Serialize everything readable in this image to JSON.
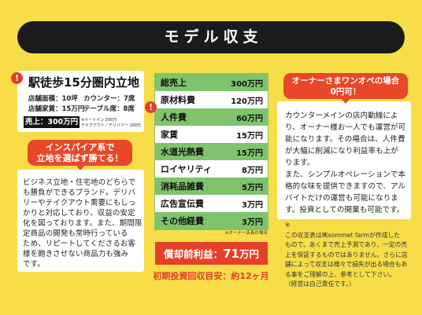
{
  "title": "モデル収支",
  "colors": {
    "background": "#F7DE48",
    "title_bar": "#1B1B1B",
    "accent_red": "#E9472A",
    "table_green": "#7FC46C"
  },
  "location_card": {
    "badge": "!",
    "heading": "駅徒歩15分圏内立地",
    "store_area": "店舗面積：10坪",
    "counter_seats": "カウンター：7席",
    "store_rent": "店舗家賃：15万円",
    "table_seats": "テーブル席：8席",
    "sales": "売上：300万円",
    "sales_breakdown": [
      "※イートイン 200万",
      "テイクアウト／デリバリー 100万"
    ]
  },
  "left_callout": [
    "インスパイア系で",
    "立地を選ばず勝てる！"
  ],
  "left_body": [
    "ビジネス立地・住宅地のどちらで",
    "も勝負ができるブランド。デリバ",
    "リーやテイクアウト需要にもしっ",
    "かりと対応しており、収益の安定",
    "化を図っております。また、期間限",
    "定商品の開発も常時行っている",
    "ため、リピートしてくださるお客",
    "様を飽きさせない商品力も強み",
    "です。"
  ],
  "pl_table": {
    "badge": "!",
    "rows": [
      {
        "label": "総売上",
        "value": "300万円"
      },
      {
        "label": "原材料費",
        "value": "120万円"
      },
      {
        "label": "人件費",
        "value": "60万円"
      },
      {
        "label": "家賃",
        "value": "15万円"
      },
      {
        "label": "水道光熱費",
        "value": "15万円"
      },
      {
        "label": "ロイヤリティ",
        "value": "8万円"
      },
      {
        "label": "消耗品雑費",
        "value": "5万円"
      },
      {
        "label": "広告宣伝費",
        "value": "3万円"
      },
      {
        "label": "その他経費",
        "value": "3万円"
      }
    ],
    "note": "※オーナー店長の場合"
  },
  "profit": {
    "label": "償却前利益：",
    "amount": "71",
    "unit": "万円"
  },
  "payback": "初期投資回収目安：約12ヶ月",
  "right_callout": [
    "オーナーさまワンオペの場合",
    "0円可！"
  ],
  "right_body": [
    "カウンターメインの店内動線によ",
    "り、オーナー様お一人でも運営が可",
    "能になります。その場合は、人件費",
    "が大幅に削減になり利益率も上が",
    "ります。",
    "また、シンプルオペレーションで本",
    "格的な味を提供できますので、アル",
    "バイトだけの運営も可能になりま",
    "す。投資としての開業も可能です。"
  ],
  "disclaimer": {
    "mark": "※",
    "lines": [
      "この収支表は㈱sommet farmが作成した",
      "もので、あくまで売上予測であり、一定の売",
      "上を保証するものではありません。さらに店",
      "舗によって収支は様々で損失が出る場合もあ",
      "る事をご理解の上、参考として下さい。",
      "（経営は自己責任です。）"
    ]
  }
}
